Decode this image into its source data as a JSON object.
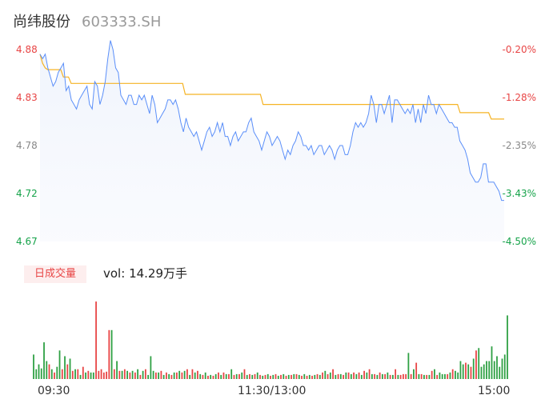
{
  "header": {
    "name": "尚纬股份",
    "code": "603333.SH"
  },
  "volume_tab": {
    "label": "日成交量",
    "vol_prefix": "vol:",
    "vol_value": "14.29万手"
  },
  "colors": {
    "price_line": "#5b8ff9",
    "avg_line": "#f5b324",
    "up": "#e84545",
    "down": "#2ea043",
    "axis_up": "#e84545",
    "axis_down": "#16a34a",
    "axis_neutral": "#888888"
  },
  "chart_data": [
    {
      "type": "line",
      "title": "",
      "y_ticks_left": [
        "4.88",
        "4.83",
        "4.78",
        "4.72",
        "4.67"
      ],
      "y_ticks_right": [
        "-0.20%",
        "-1.28%",
        "-2.35%",
        "-3.43%",
        "-4.50%"
      ],
      "ylim": [
        4.67,
        4.88
      ],
      "x_ticks": [
        "09:30",
        "11:30/13:00",
        "15:00"
      ],
      "series": [
        {
          "values": [
            4.875,
            4.87,
            4.875,
            4.86,
            4.85,
            4.84,
            4.845,
            4.855,
            4.86,
            4.865,
            4.835,
            4.84,
            4.825,
            4.82,
            4.815,
            4.825,
            4.83,
            4.835,
            4.84,
            4.82,
            4.815,
            4.845,
            4.84,
            4.82,
            4.83,
            4.845,
            4.87,
            4.89,
            4.88,
            4.86,
            4.855,
            4.83,
            4.825,
            4.82,
            4.83,
            4.83,
            4.82,
            4.82,
            4.83,
            4.825,
            4.83,
            4.82,
            4.81,
            4.83,
            4.82,
            4.8,
            4.805,
            4.81,
            4.815,
            4.825,
            4.825,
            4.82,
            4.825,
            4.815,
            4.8,
            4.79,
            4.805,
            4.795,
            4.79,
            4.785,
            4.79,
            4.78,
            4.77,
            4.78,
            4.79,
            4.795,
            4.785,
            4.79,
            4.8,
            4.79,
            4.8,
            4.785,
            4.785,
            4.775,
            4.785,
            4.79,
            4.78,
            4.785,
            4.79,
            4.79,
            4.8,
            4.805,
            4.79,
            4.785,
            4.78,
            4.77,
            4.78,
            4.79,
            4.785,
            4.775,
            4.78,
            4.785,
            4.78,
            4.77,
            4.76,
            4.77,
            4.765,
            4.775,
            4.78,
            4.79,
            4.785,
            4.775,
            4.775,
            4.77,
            4.775,
            4.765,
            4.77,
            4.775,
            4.775,
            4.765,
            4.77,
            4.775,
            4.77,
            4.76,
            4.77,
            4.775,
            4.775,
            4.765,
            4.765,
            4.775,
            4.79,
            4.8,
            4.795,
            4.8,
            4.795,
            4.8,
            4.81,
            4.83,
            4.82,
            4.8,
            4.82,
            4.82,
            4.81,
            4.82,
            4.83,
            4.8,
            4.825,
            4.825,
            4.82,
            4.815,
            4.81,
            4.815,
            4.81,
            4.82,
            4.8,
            4.815,
            4.8,
            4.82,
            4.81,
            4.83,
            4.82,
            4.82,
            4.81,
            4.82,
            4.815,
            4.81,
            4.805,
            4.8,
            4.8,
            4.795,
            4.795,
            4.78,
            4.775,
            4.77,
            4.76,
            4.745,
            4.74,
            4.735,
            4.735,
            4.74,
            4.755,
            4.755,
            4.735,
            4.735,
            4.735,
            4.73,
            4.725,
            4.715,
            4.715
          ]
        },
        {
          "values": [
            4.875,
            4.865,
            4.86,
            4.858,
            4.858,
            4.858,
            4.858,
            4.858,
            4.858,
            4.85,
            4.85,
            4.85,
            4.843,
            4.843,
            4.843,
            4.843,
            4.843,
            4.843,
            4.843,
            4.843,
            4.843,
            4.843,
            4.843,
            4.843,
            4.843,
            4.843,
            4.843,
            4.843,
            4.843,
            4.843,
            4.843,
            4.843,
            4.843,
            4.843,
            4.843,
            4.843,
            4.843,
            4.843,
            4.843,
            4.843,
            4.843,
            4.843,
            4.843,
            4.843,
            4.843,
            4.843,
            4.843,
            4.843,
            4.843,
            4.843,
            4.843,
            4.843,
            4.843,
            4.843,
            4.843,
            4.843,
            4.831,
            4.831,
            4.831,
            4.831,
            4.831,
            4.831,
            4.831,
            4.831,
            4.831,
            4.831,
            4.831,
            4.831,
            4.831,
            4.831,
            4.831,
            4.831,
            4.831,
            4.831,
            4.831,
            4.831,
            4.831,
            4.831,
            4.831,
            4.831,
            4.831,
            4.831,
            4.831,
            4.831,
            4.831,
            4.831,
            4.82,
            4.82,
            4.82,
            4.82,
            4.82,
            4.82,
            4.82,
            4.82,
            4.82,
            4.82,
            4.82,
            4.82,
            4.82,
            4.82,
            4.82,
            4.82,
            4.82,
            4.82,
            4.82,
            4.82,
            4.82,
            4.82,
            4.82,
            4.82,
            4.82,
            4.82,
            4.82,
            4.82,
            4.82,
            4.82,
            4.82,
            4.82,
            4.82,
            4.82,
            4.82,
            4.82,
            4.82,
            4.82,
            4.82,
            4.82,
            4.82,
            4.82,
            4.82,
            4.82,
            4.82,
            4.82,
            4.82,
            4.82,
            4.82,
            4.82,
            4.82,
            4.82,
            4.82,
            4.82,
            4.82,
            4.82,
            4.82,
            4.82,
            4.82,
            4.82,
            4.82,
            4.82,
            4.82,
            4.82,
            4.82,
            4.82,
            4.82,
            4.82,
            4.82,
            4.82,
            4.82,
            4.82,
            4.82,
            4.82,
            4.82,
            4.82,
            4.811,
            4.811,
            4.811,
            4.811,
            4.811,
            4.811,
            4.811,
            4.811,
            4.811,
            4.811,
            4.811,
            4.811,
            4.804,
            4.804,
            4.804,
            4.804,
            4.804,
            4.804
          ]
        }
      ]
    },
    {
      "type": "bar",
      "title": "日成交量",
      "values": [
        30,
        12,
        18,
        13,
        45,
        22,
        18,
        12,
        8,
        15,
        35,
        12,
        28,
        18,
        25,
        10,
        12,
        12,
        5,
        15,
        8,
        10,
        8,
        8,
        95,
        10,
        12,
        8,
        9,
        60,
        60,
        12,
        22,
        10,
        10,
        12,
        10,
        8,
        10,
        8,
        12,
        5,
        10,
        12,
        5,
        28,
        10,
        8,
        8,
        10,
        5,
        8,
        6,
        5,
        8,
        8,
        10,
        8,
        10,
        12,
        5,
        12,
        8,
        10,
        6,
        5,
        8,
        4,
        5,
        4,
        6,
        8,
        5,
        8,
        6,
        6,
        12,
        5,
        6,
        6,
        8,
        12,
        5,
        6,
        5,
        6,
        8,
        5,
        4,
        5,
        6,
        4,
        5,
        6,
        4,
        5,
        6,
        4,
        5,
        5,
        6,
        6,
        5,
        4,
        6,
        4,
        5,
        4,
        5,
        6,
        5,
        8,
        10,
        6,
        8,
        12,
        5,
        6,
        6,
        5,
        8,
        8,
        6,
        8,
        6,
        8,
        5,
        10,
        8,
        12,
        6,
        6,
        5,
        8,
        6,
        6,
        8,
        5,
        5,
        12,
        5,
        5,
        6,
        6,
        32,
        6,
        12,
        20,
        6,
        6,
        5,
        5,
        5,
        10,
        12,
        5,
        8,
        6,
        6,
        6,
        8,
        12,
        10,
        8,
        22,
        18,
        20,
        18,
        15,
        25,
        35,
        38,
        15,
        18,
        22,
        22,
        40,
        22,
        28,
        15,
        25,
        30,
        78
      ],
      "directions": [
        "down",
        "down",
        "down",
        "down",
        "down",
        "down",
        "up",
        "down",
        "up",
        "down",
        "down",
        "up",
        "down",
        "up",
        "down",
        "up",
        "down",
        "up",
        "down",
        "up",
        "down",
        "up",
        "down",
        "down",
        "up",
        "up",
        "up",
        "up",
        "up",
        "up",
        "down",
        "up",
        "down",
        "up",
        "down",
        "up",
        "down",
        "up",
        "down",
        "up",
        "down",
        "up",
        "down",
        "up",
        "down",
        "down",
        "down",
        "up",
        "down",
        "up",
        "down",
        "up",
        "down",
        "up",
        "down",
        "up",
        "down",
        "up",
        "down",
        "up",
        "down",
        "up",
        "down",
        "up",
        "down",
        "up",
        "down",
        "up",
        "down",
        "up",
        "down",
        "up",
        "down",
        "up",
        "down",
        "up",
        "down",
        "up",
        "down",
        "up",
        "down",
        "up",
        "down",
        "up",
        "down",
        "up",
        "down",
        "up",
        "down",
        "up",
        "down",
        "up",
        "down",
        "up",
        "down",
        "up",
        "down",
        "up",
        "down",
        "up",
        "down",
        "up",
        "down",
        "up",
        "down",
        "up",
        "down",
        "up",
        "down",
        "up",
        "down",
        "up",
        "down",
        "up",
        "down",
        "up",
        "down",
        "up",
        "down",
        "up",
        "down",
        "up",
        "down",
        "up",
        "down",
        "up",
        "down",
        "up",
        "down",
        "up",
        "down",
        "up",
        "down",
        "up",
        "down",
        "up",
        "down",
        "up",
        "down",
        "up",
        "down",
        "up",
        "up",
        "up",
        "down",
        "up",
        "down",
        "up",
        "down",
        "up",
        "down",
        "up",
        "down",
        "up",
        "down",
        "up",
        "down",
        "down",
        "down",
        "up",
        "down",
        "up",
        "down",
        "down",
        "down",
        "down",
        "up",
        "down",
        "up",
        "down",
        "up",
        "down",
        "down",
        "down",
        "down",
        "down",
        "down",
        "down",
        "down",
        "down",
        "down",
        "down",
        "down",
        "down",
        "down"
      ]
    }
  ]
}
